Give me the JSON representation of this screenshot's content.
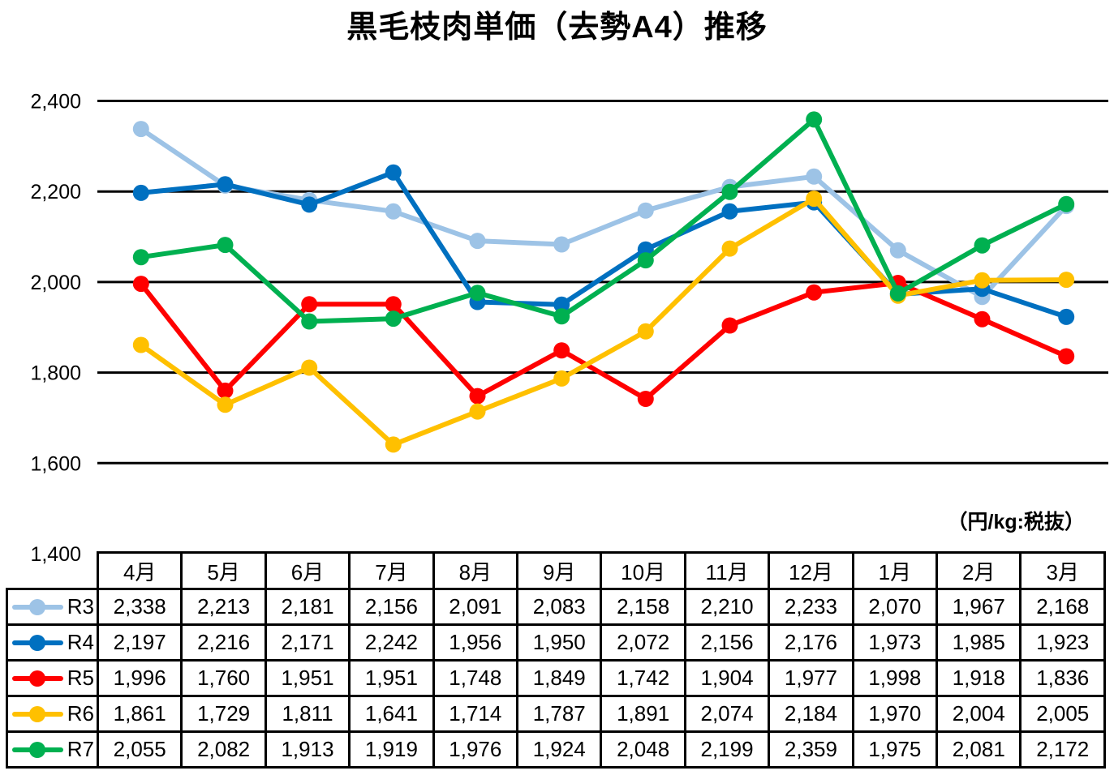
{
  "title": "黒毛枝肉単価（去勢A4）推移",
  "unit_label": "（円/kg:税抜）",
  "chart_data": {
    "type": "line",
    "categories": [
      "4月",
      "5月",
      "6月",
      "7月",
      "8月",
      "9月",
      "10月",
      "11月",
      "12月",
      "1月",
      "2月",
      "3月"
    ],
    "series": [
      {
        "name": "R3",
        "color": "#9DC3E6",
        "values": [
          2338,
          2213,
          2181,
          2156,
          2091,
          2083,
          2158,
          2210,
          2233,
          2070,
          1967,
          2168
        ]
      },
      {
        "name": "R4",
        "color": "#0070C0",
        "values": [
          2197,
          2216,
          2171,
          2242,
          1956,
          1950,
          2072,
          2156,
          2176,
          1973,
          1985,
          1923
        ]
      },
      {
        "name": "R5",
        "color": "#FF0000",
        "values": [
          1996,
          1760,
          1951,
          1951,
          1748,
          1849,
          1742,
          1904,
          1977,
          1998,
          1918,
          1836
        ]
      },
      {
        "name": "R6",
        "color": "#FFC000",
        "values": [
          1861,
          1729,
          1811,
          1641,
          1714,
          1787,
          1891,
          2074,
          2184,
          1970,
          2004,
          2005
        ]
      },
      {
        "name": "R7",
        "color": "#00B050",
        "values": [
          2055,
          2082,
          1913,
          1919,
          1976,
          1924,
          2048,
          2199,
          2359,
          1975,
          2081,
          2172
        ]
      }
    ],
    "ylim": [
      1400,
      2400
    ],
    "yticks": [
      2400,
      2200,
      2000,
      1800,
      1600,
      1400
    ],
    "ytick_labels": [
      "2,400",
      "2,200",
      "2,000",
      "1,800",
      "1,600",
      "1,400"
    ],
    "grid": true,
    "gridline_color": "#000000",
    "legend_position": "table-left",
    "table_legend_labels": [
      "R3",
      "R4",
      "R5",
      "R6",
      "R7"
    ]
  }
}
